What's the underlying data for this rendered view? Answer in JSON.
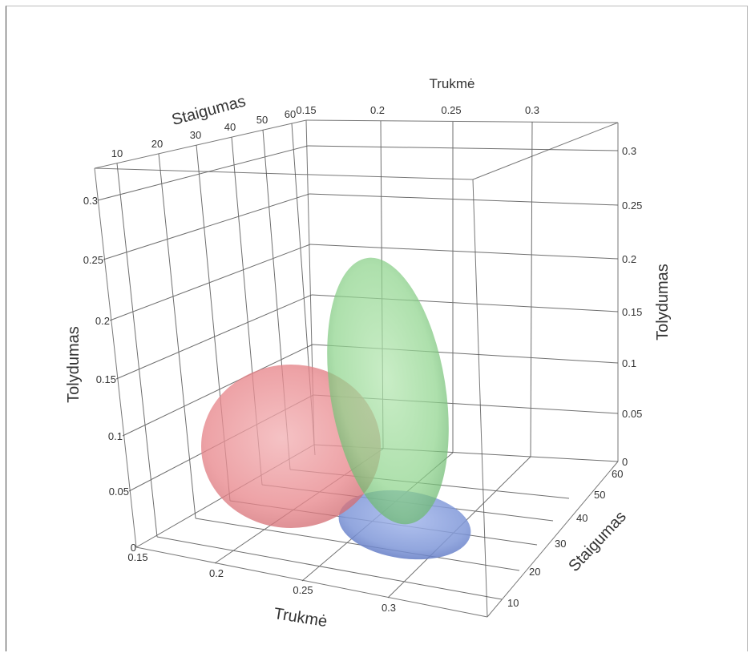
{
  "chart_data": {
    "type": "3d-ellipsoid",
    "axes": {
      "trukme": {
        "label": "Trukmė",
        "ticks": [
          "0.15",
          "0.2",
          "0.25",
          "0.3"
        ]
      },
      "staigumas": {
        "label": "Staigumas",
        "ticks": [
          "10",
          "20",
          "30",
          "40",
          "50",
          "60"
        ]
      },
      "tolydumas": {
        "label": "Tolydumas",
        "ticks": [
          "0",
          "0.05",
          "0.1",
          "0.15",
          "0.2",
          "0.25",
          "0.3"
        ]
      }
    },
    "ellipsoids": [
      {
        "color": "#e8868c",
        "opacity": 0.75
      },
      {
        "color": "#8fd68f",
        "opacity": 0.72
      },
      {
        "color": "#7f97d8",
        "opacity": 0.85
      }
    ]
  }
}
